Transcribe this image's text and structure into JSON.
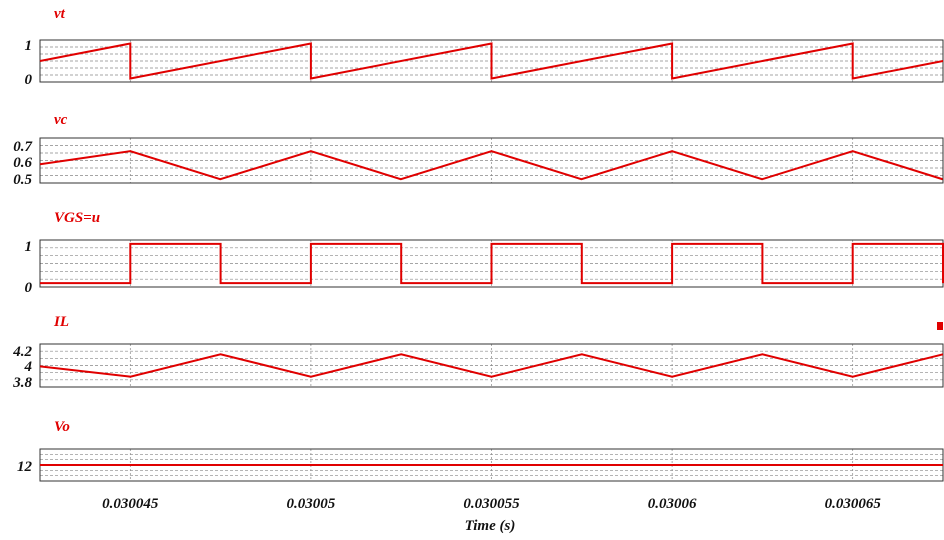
{
  "chart_data": [
    {
      "type": "line",
      "title": "vt",
      "yticks": [
        "1",
        "0"
      ],
      "ylim": [
        -0.1,
        1.1
      ],
      "x": [
        0.0300425,
        0.030045,
        0.030045,
        0.03005,
        0.03005,
        0.030055,
        0.030055,
        0.03006,
        0.03006,
        0.030065,
        0.030065,
        0.0300675
      ],
      "series": [
        {
          "values": [
            0.5,
            1,
            0,
            1,
            0,
            1,
            0,
            1,
            0,
            1,
            0,
            0.5
          ]
        }
      ]
    },
    {
      "type": "line",
      "title": "vc",
      "yticks": [
        "0.7",
        "0.6",
        "0.5"
      ],
      "ylim": [
        0.48,
        0.72
      ],
      "x": [
        0.0300425,
        0.030045,
        0.03004749,
        0.03005,
        0.03005249,
        0.030055,
        0.03005749,
        0.03006,
        0.03006249,
        0.030065,
        0.03006749
      ],
      "series": [
        {
          "values": [
            0.58,
            0.65,
            0.5,
            0.65,
            0.5,
            0.65,
            0.5,
            0.65,
            0.5,
            0.65,
            0.5
          ]
        }
      ]
    },
    {
      "type": "line",
      "title": "VGS=u",
      "yticks": [
        "1",
        "0"
      ],
      "ylim": [
        -0.1,
        1.1
      ],
      "x": [
        0.0300425,
        0.030045,
        0.030045,
        0.0300475,
        0.0300475,
        0.03005,
        0.03005,
        0.0300525,
        0.0300525,
        0.030055,
        0.030055,
        0.0300575,
        0.0300575,
        0.03006,
        0.03006,
        0.0300625,
        0.0300625,
        0.030065,
        0.030065,
        0.0300675,
        0.0300675
      ],
      "series": [
        {
          "values": [
            0,
            0,
            1,
            1,
            0,
            0,
            1,
            1,
            0,
            0,
            1,
            1,
            0,
            0,
            1,
            1,
            0,
            0,
            1,
            1,
            0
          ]
        }
      ]
    },
    {
      "type": "line",
      "title": "IL",
      "yticks": [
        "4.2",
        "4",
        "3.8"
      ],
      "ylim": [
        3.75,
        4.25
      ],
      "x": [
        0.0300425,
        0.030045,
        0.0300475,
        0.03005,
        0.0300525,
        0.030055,
        0.0300575,
        0.03006,
        0.0300625,
        0.030065,
        0.0300675
      ],
      "series": [
        {
          "values": [
            3.99,
            3.87,
            4.13,
            3.87,
            4.13,
            3.87,
            4.13,
            3.87,
            4.13,
            3.87,
            4.13
          ]
        }
      ]
    },
    {
      "type": "line",
      "title": "Vo",
      "yticks": [
        "12"
      ],
      "ylim": [
        11.5,
        12.5
      ],
      "x": [
        0.0300425,
        0.0300675
      ],
      "series": [
        {
          "values": [
            12,
            12
          ]
        }
      ]
    }
  ],
  "x_axis": {
    "xlim": [
      0.0300425,
      0.0300675
    ],
    "ticks": [
      0.030045,
      0.03005,
      0.030055,
      0.03006,
      0.030065
    ],
    "tick_labels": [
      "0.030045",
      "0.03005",
      "0.030055",
      "0.03006",
      "0.030065"
    ],
    "xlabel": "Time (s)",
    "grid": true
  },
  "colors": {
    "trace": "#e00000",
    "grid": "#888888",
    "frame": "#333333"
  }
}
